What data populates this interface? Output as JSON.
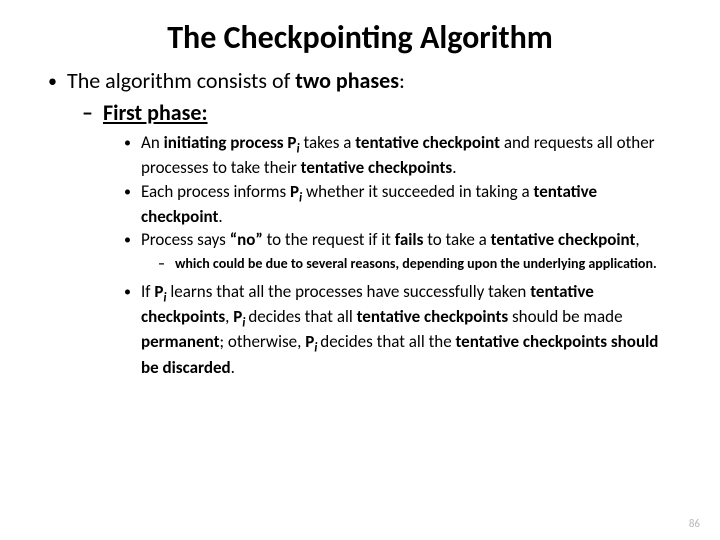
{
  "title": "The Checkpointing Algorithm",
  "lvl1_text_a": "The algorithm consists of ",
  "lvl1_text_b": "two phases",
  "lvl1_text_c": ":",
  "lvl2_text": "First phase:",
  "b1_a": "An ",
  "b1_b": "initiating process P",
  "b1_sub": "i",
  "b1_c": " takes a ",
  "b1_d": "tentative checkpoint",
  "b1_e": " and requests all other processes to take their ",
  "b1_f": "tentative checkpoints",
  "b1_g": ".",
  "b2_a": "Each process informs ",
  "b2_b": "P",
  "b2_sub": "i",
  "b2_c": "  whether it succeeded in taking a ",
  "b2_d": "tentative checkpoint",
  "b2_e": ".",
  "b3_a": "Process says ",
  "b3_b": "“no”",
  "b3_c": " to the request if it ",
  "b3_d": "fails",
  "b3_e": " to take a ",
  "b3_f": "tentative checkpoint",
  "b3_g": ",",
  "b4": "which could be due to several reasons, depending upon the underlying application.",
  "b5_a": "If ",
  "b5_b": "P",
  "b5_sub1": "i",
  "b5_c": " learns that all the processes have successfully taken ",
  "b5_d": "tentative checkpoints",
  "b5_e": ", ",
  "b5_f": "P",
  "b5_sub2": "i ",
  "b5_g": "decides that all ",
  "b5_h": "tentative checkpoints ",
  "b5_i": "should be made ",
  "b5_j": "permanent",
  "b5_k": "; otherwise, ",
  "b5_l": "P",
  "b5_sub3": "i ",
  "b5_m": "decides that all the ",
  "b5_n": "tentative checkpoints should be discarded",
  "b5_o": ".",
  "pagenum": "86",
  "dash": "–",
  "dot": "•"
}
